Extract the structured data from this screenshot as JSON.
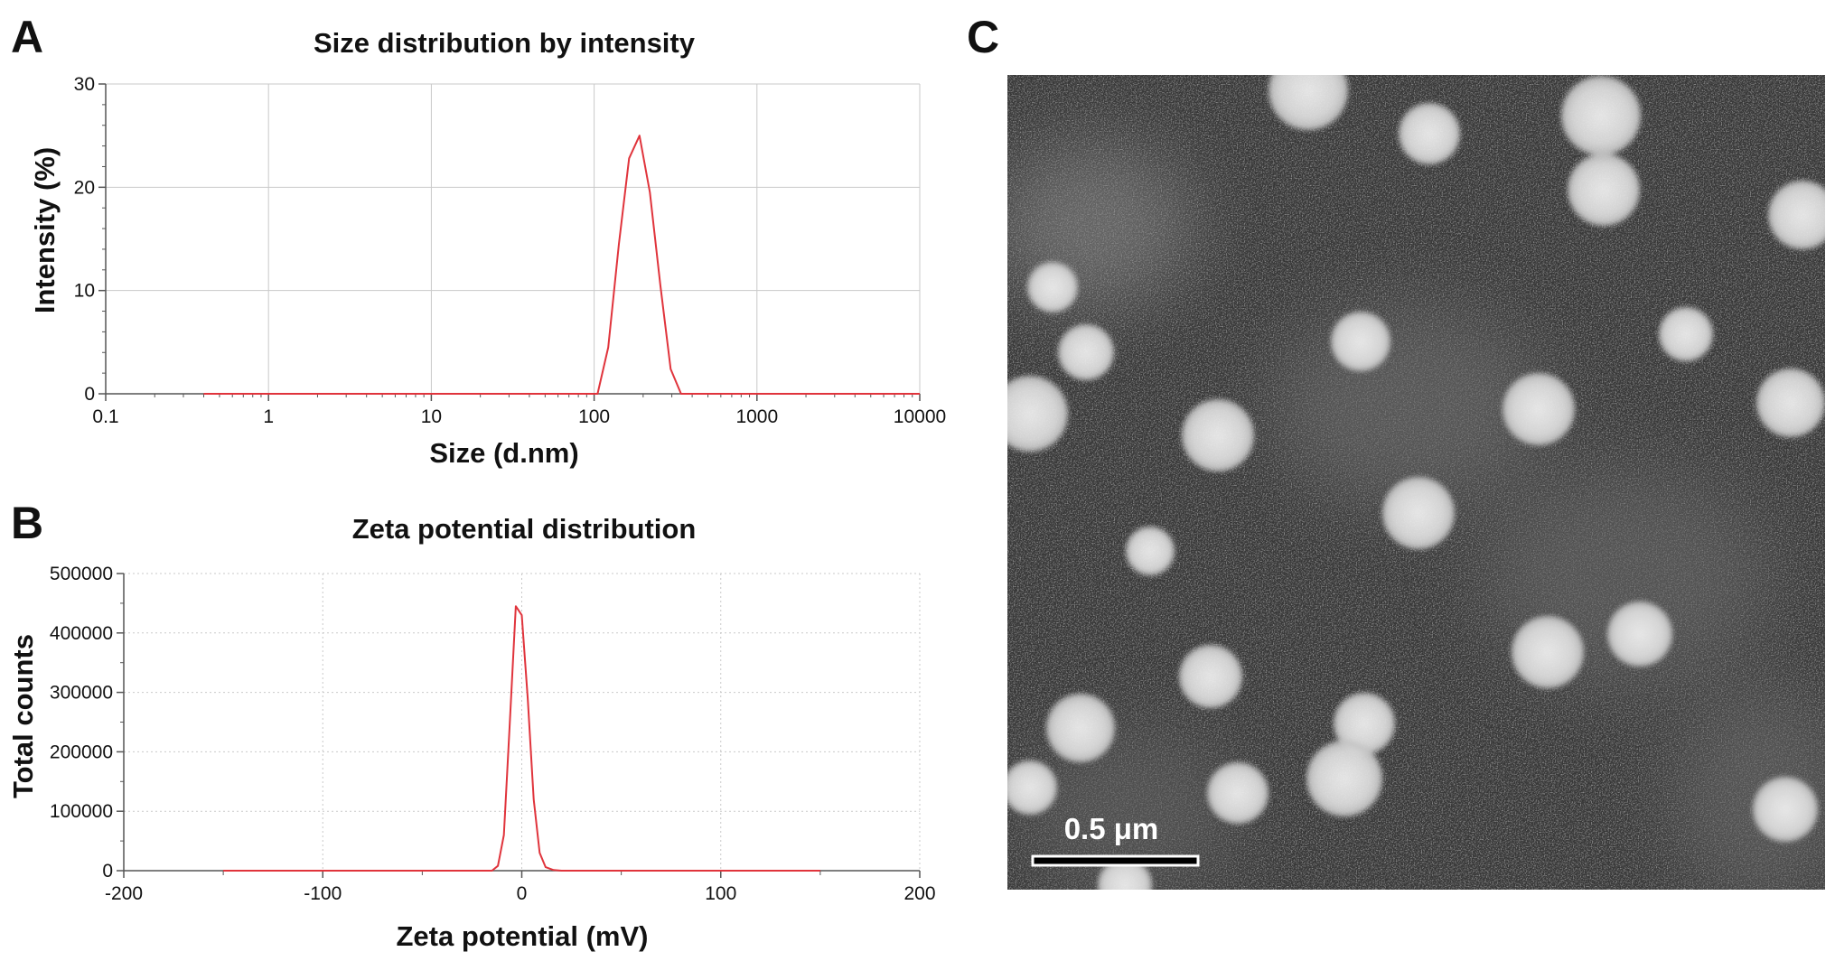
{
  "panels": {
    "a": {
      "letter": "A"
    },
    "b": {
      "letter": "B"
    },
    "c": {
      "letter": "C",
      "scale_bar_label": "0.5 μm"
    }
  },
  "colors": {
    "series_line": "#e0343c",
    "grid": "#c9c9c9",
    "axis": "#555555",
    "micrograph_bg": "#3a3a3a",
    "particle": "#e8e8e8"
  },
  "chart_data": [
    {
      "id": "size",
      "type": "line",
      "title": "Size distribution by intensity",
      "xlabel": "Size (d.nm)",
      "ylabel": "Intensity (%)",
      "xscale": "log",
      "xlim": [
        0.1,
        10000
      ],
      "ylim": [
        0,
        30
      ],
      "xticks": [
        0.1,
        1,
        10,
        100,
        1000,
        10000
      ],
      "xtick_labels": [
        "0.1",
        "1",
        "10",
        "100",
        "1000",
        "10000"
      ],
      "yticks": [
        0,
        10,
        20,
        30
      ],
      "ytick_labels": [
        "0",
        "10",
        "20",
        "30"
      ],
      "grid": true,
      "series": [
        {
          "x": [
            0.4,
            1,
            10,
            100,
            105,
            122,
            142,
            164,
            190,
            220,
            255,
            295,
            342,
            1000,
            10000
          ],
          "y": [
            0,
            0,
            0,
            0,
            0,
            4.5,
            14.5,
            22.8,
            25.0,
            19.5,
            10.5,
            2.4,
            0,
            0,
            0
          ]
        }
      ]
    },
    {
      "id": "zeta",
      "type": "line",
      "title": "Zeta potential distribution",
      "xlabel": "Zeta potential (mV)",
      "ylabel": "Total counts",
      "xlim": [
        -200,
        200
      ],
      "ylim": [
        0,
        500000
      ],
      "xticks": [
        -200,
        -100,
        0,
        100,
        200
      ],
      "xtick_labels": [
        "-200",
        "-100",
        "0",
        "100",
        "200"
      ],
      "yticks": [
        0,
        100000,
        200000,
        300000,
        400000,
        500000
      ],
      "ytick_labels": [
        "0",
        "100000",
        "200000",
        "300000",
        "400000",
        "500000"
      ],
      "grid": true,
      "series": [
        {
          "x": [
            -150,
            -100,
            -50,
            -15,
            -12,
            -9,
            -6,
            -3,
            0,
            3,
            6,
            9,
            12,
            16,
            20,
            50,
            100,
            150
          ],
          "y": [
            0,
            0,
            0,
            0,
            8000,
            60000,
            250000,
            445000,
            430000,
            290000,
            120000,
            30000,
            6000,
            1000,
            0,
            0,
            0,
            0
          ]
        }
      ]
    }
  ]
}
